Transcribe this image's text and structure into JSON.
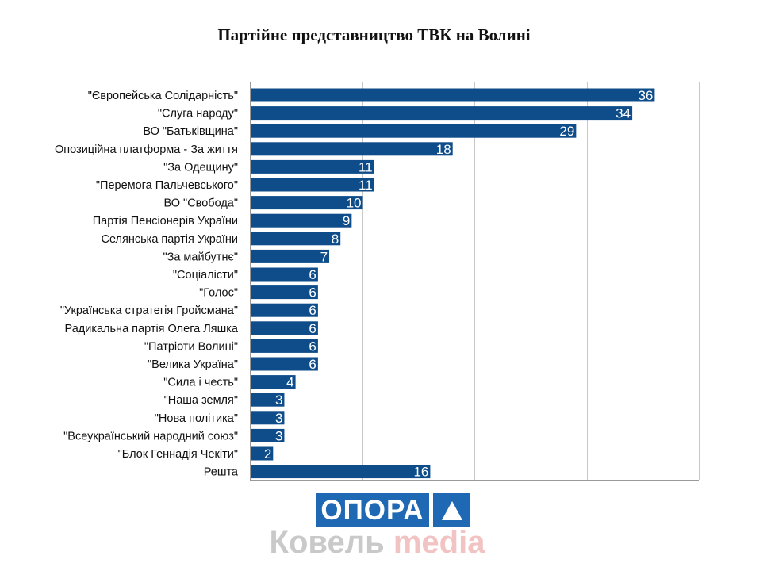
{
  "chart_data": {
    "type": "bar",
    "orientation": "horizontal",
    "title": "Партійне представництво ТВК на Волині",
    "categories": [
      "\"Європейська Солідарність\"",
      "\"Слуга народу\"",
      "ВО \"Батьківщина\"",
      "Опозиційна платформа - За життя",
      "\"За Одещину\"",
      "\"Перемога Пальчевського\"",
      "ВО \"Свобода\"",
      "Партія Пенсіонерів України",
      "Селянська партія України",
      "\"За майбутнє\"",
      "\"Соціалісти\"",
      "\"Голос\"",
      "\"Українська стратегія Гройсмана\"",
      "Радикальна партія Олега Ляшка",
      "\"Патріоти Волині\"",
      "\"Велика Україна\"",
      "\"Сила і честь\"",
      "\"Наша земля\"",
      "\"Нова політика\"",
      "\"Всеукраїнський народний союз\"",
      "\"Блок Геннадія Чекіти\"",
      "Решта"
    ],
    "values": [
      36,
      34,
      29,
      18,
      11,
      11,
      10,
      9,
      8,
      7,
      6,
      6,
      6,
      6,
      6,
      6,
      4,
      3,
      3,
      3,
      2,
      16
    ],
    "xlim": [
      0,
      40
    ],
    "grid": true,
    "bar_color": "#0e4d8a",
    "grid_color": "#c8c8c8",
    "value_label_color": "#ffffff"
  },
  "branding": {
    "logo_text": "ОПОРА",
    "logo_color": "#1f68b4",
    "site_part1": "Ковель",
    "site_part2": "media",
    "site_color1": "#c9c9c9",
    "site_color2": "#f2c3c3"
  }
}
